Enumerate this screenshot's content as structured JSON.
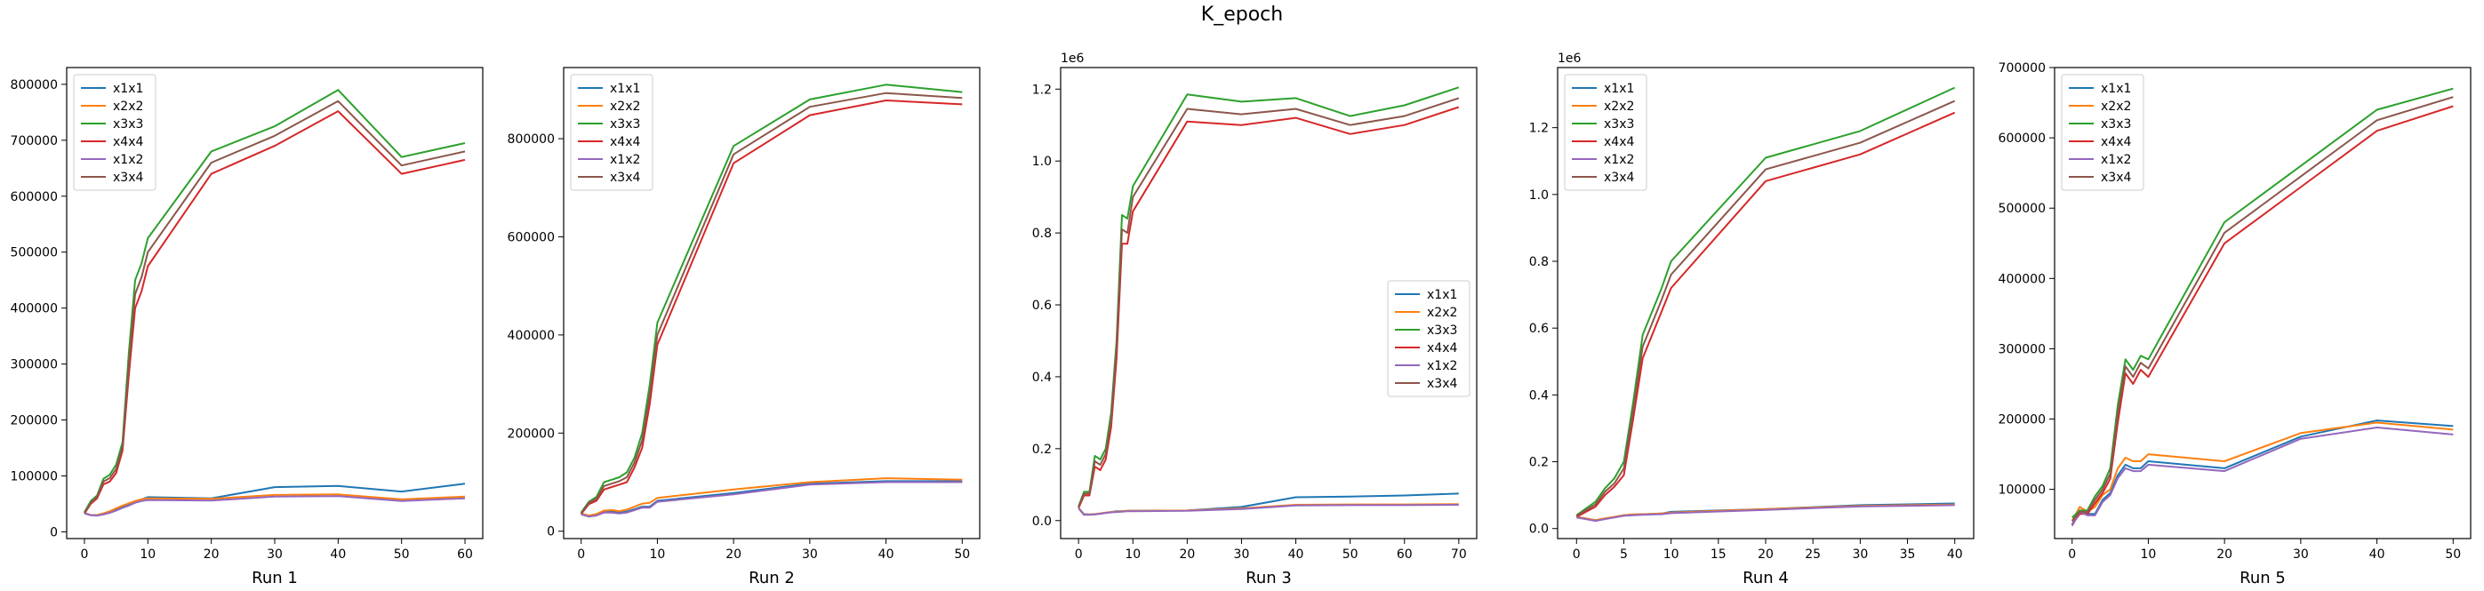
{
  "figure": {
    "title": "K_epoch"
  },
  "colors": {
    "x1x1": "#1f77b4",
    "x2x2": "#ff7f0e",
    "x3x3": "#2ca02c",
    "x4x4": "#d62728",
    "x1x2": "#9467bd",
    "x3x4": "#8c564b"
  },
  "chart_data": [
    {
      "type": "line",
      "xlabel": "Run 1",
      "xlim": [
        -2.8,
        62.8
      ],
      "ylim": [
        -12000,
        830000
      ],
      "xticks": [
        0,
        10,
        20,
        30,
        40,
        50,
        60
      ],
      "yticks": [
        0,
        100000,
        200000,
        300000,
        400000,
        500000,
        600000,
        700000,
        800000
      ],
      "y_exponent": "",
      "legend": "upper left",
      "x": [
        0,
        1,
        2,
        3,
        4,
        5,
        6,
        7,
        8,
        9,
        10,
        20,
        30,
        40,
        50,
        60
      ],
      "series": [
        {
          "name": "x1x1",
          "values": [
            33000,
            30000,
            30000,
            33000,
            36000,
            40000,
            46000,
            50000,
            55000,
            58000,
            62000,
            60000,
            80000,
            82000,
            72000,
            86000
          ]
        },
        {
          "name": "x2x2",
          "values": [
            34000,
            30000,
            30000,
            33000,
            37000,
            42000,
            47000,
            51000,
            55000,
            58000,
            60000,
            59000,
            66000,
            67000,
            58000,
            63000
          ]
        },
        {
          "name": "x3x3",
          "values": [
            35000,
            55000,
            65000,
            95000,
            102000,
            120000,
            160000,
            320000,
            450000,
            480000,
            525000,
            680000,
            725000,
            790000,
            670000,
            695000
          ]
        },
        {
          "name": "x4x4",
          "values": [
            33000,
            50000,
            60000,
            85000,
            90000,
            105000,
            145000,
            280000,
            400000,
            430000,
            475000,
            640000,
            690000,
            752000,
            640000,
            665000
          ]
        },
        {
          "name": "x1x2",
          "values": [
            33000,
            30000,
            29000,
            31000,
            34000,
            38000,
            43000,
            47000,
            52000,
            55000,
            57000,
            56000,
            63000,
            64000,
            55000,
            60000
          ]
        },
        {
          "name": "x3x4",
          "values": [
            34000,
            52000,
            63000,
            90000,
            96000,
            112000,
            152000,
            300000,
            425000,
            455000,
            500000,
            660000,
            708000,
            770000,
            655000,
            680000
          ]
        }
      ]
    },
    {
      "type": "line",
      "xlabel": "Run 2",
      "xlim": [
        -2.3,
        52.3
      ],
      "ylim": [
        -15000,
        945000
      ],
      "xticks": [
        0,
        10,
        20,
        30,
        40,
        50
      ],
      "yticks": [
        0,
        200000,
        400000,
        600000,
        800000
      ],
      "y_exponent": "",
      "legend": "upper left",
      "x": [
        0,
        1,
        2,
        3,
        4,
        5,
        6,
        7,
        8,
        9,
        10,
        20,
        30,
        40,
        50
      ],
      "series": [
        {
          "name": "x1x1",
          "values": [
            35000,
            30000,
            33000,
            40000,
            40000,
            38000,
            40000,
            45000,
            50000,
            50000,
            62000,
            78000,
            97000,
            102000,
            102000
          ]
        },
        {
          "name": "x2x2",
          "values": [
            36000,
            32000,
            35000,
            42000,
            43000,
            41000,
            44000,
            50000,
            56000,
            58000,
            68000,
            85000,
            100000,
            108000,
            105000
          ]
        },
        {
          "name": "x3x3",
          "values": [
            38000,
            60000,
            70000,
            100000,
            105000,
            110000,
            120000,
            150000,
            200000,
            300000,
            425000,
            785000,
            880000,
            910000,
            895000
          ]
        },
        {
          "name": "x4x4",
          "values": [
            35000,
            55000,
            62000,
            85000,
            90000,
            95000,
            100000,
            130000,
            170000,
            260000,
            380000,
            750000,
            848000,
            878000,
            870000
          ]
        },
        {
          "name": "x1x2",
          "values": [
            34000,
            30000,
            32000,
            38000,
            38000,
            36000,
            38000,
            43000,
            48000,
            48000,
            60000,
            75000,
            95000,
            100000,
            100000
          ]
        },
        {
          "name": "x3x4",
          "values": [
            36000,
            58000,
            66000,
            92000,
            97000,
            102000,
            110000,
            140000,
            185000,
            280000,
            400000,
            768000,
            865000,
            893000,
            883000
          ]
        }
      ]
    },
    {
      "type": "line",
      "xlabel": "Run 3",
      "xlim": [
        -3.3,
        73.3
      ],
      "ylim": [
        -0.05,
        1.26
      ],
      "xticks": [
        0,
        10,
        20,
        30,
        40,
        50,
        60,
        70
      ],
      "yticks": [
        0.0,
        0.2,
        0.4,
        0.6,
        0.8,
        1.0,
        1.2
      ],
      "y_exponent": "1e6",
      "legend": "center right",
      "x": [
        0,
        1,
        2,
        3,
        4,
        5,
        6,
        7,
        8,
        9,
        10,
        20,
        30,
        40,
        50,
        60,
        70
      ],
      "series": [
        {
          "name": "x1x1",
          "values": [
            0.035,
            0.018,
            0.017,
            0.018,
            0.02,
            0.022,
            0.024,
            0.026,
            0.026,
            0.027,
            0.027,
            0.028,
            0.038,
            0.065,
            0.067,
            0.07,
            0.075
          ]
        },
        {
          "name": "x2x2",
          "values": [
            0.035,
            0.017,
            0.017,
            0.018,
            0.02,
            0.022,
            0.024,
            0.025,
            0.026,
            0.027,
            0.027,
            0.028,
            0.034,
            0.044,
            0.045,
            0.045,
            0.046
          ]
        },
        {
          "name": "x3x3",
          "values": [
            0.04,
            0.08,
            0.08,
            0.18,
            0.17,
            0.2,
            0.3,
            0.5,
            0.85,
            0.84,
            0.93,
            1.185,
            1.165,
            1.175,
            1.125,
            1.155,
            1.205
          ]
        },
        {
          "name": "x4x4",
          "values": [
            0.035,
            0.07,
            0.07,
            0.15,
            0.14,
            0.17,
            0.26,
            0.45,
            0.77,
            0.77,
            0.86,
            1.11,
            1.1,
            1.12,
            1.075,
            1.1,
            1.15
          ]
        },
        {
          "name": "x1x2",
          "values": [
            0.034,
            0.016,
            0.016,
            0.017,
            0.019,
            0.021,
            0.023,
            0.024,
            0.025,
            0.026,
            0.026,
            0.027,
            0.032,
            0.042,
            0.043,
            0.043,
            0.044
          ]
        },
        {
          "name": "x3x4",
          "values": [
            0.037,
            0.075,
            0.075,
            0.165,
            0.155,
            0.185,
            0.28,
            0.48,
            0.81,
            0.8,
            0.9,
            1.145,
            1.13,
            1.145,
            1.1,
            1.125,
            1.175
          ]
        }
      ]
    },
    {
      "type": "line",
      "xlabel": "Run 4",
      "xlim": [
        -2.0,
        42.0
      ],
      "ylim": [
        -0.03,
        1.38
      ],
      "xticks": [
        0,
        5,
        10,
        15,
        20,
        25,
        30,
        35,
        40
      ],
      "yticks": [
        0.0,
        0.2,
        0.4,
        0.6,
        0.8,
        1.0,
        1.2
      ],
      "y_exponent": "1e6",
      "legend": "upper left",
      "x": [
        0,
        1,
        2,
        3,
        4,
        5,
        6,
        7,
        8,
        9,
        10,
        20,
        30,
        40
      ],
      "series": [
        {
          "name": "x1x1",
          "values": [
            0.035,
            0.03,
            0.025,
            0.03,
            0.035,
            0.04,
            0.042,
            0.043,
            0.044,
            0.045,
            0.05,
            0.058,
            0.07,
            0.075
          ]
        },
        {
          "name": "x2x2",
          "values": [
            0.035,
            0.03,
            0.025,
            0.03,
            0.035,
            0.04,
            0.042,
            0.043,
            0.044,
            0.045,
            0.048,
            0.058,
            0.068,
            0.072
          ]
        },
        {
          "name": "x3x3",
          "values": [
            0.04,
            0.06,
            0.08,
            0.12,
            0.15,
            0.2,
            0.38,
            0.58,
            0.65,
            0.72,
            0.8,
            1.11,
            1.19,
            1.32
          ]
        },
        {
          "name": "x4x4",
          "values": [
            0.035,
            0.05,
            0.065,
            0.1,
            0.125,
            0.16,
            0.33,
            0.51,
            0.58,
            0.65,
            0.72,
            1.04,
            1.12,
            1.245
          ]
        },
        {
          "name": "x1x2",
          "values": [
            0.033,
            0.028,
            0.023,
            0.028,
            0.033,
            0.038,
            0.04,
            0.041,
            0.042,
            0.043,
            0.046,
            0.056,
            0.066,
            0.07
          ]
        },
        {
          "name": "x3x4",
          "values": [
            0.038,
            0.055,
            0.072,
            0.11,
            0.135,
            0.18,
            0.355,
            0.545,
            0.615,
            0.685,
            0.76,
            1.075,
            1.155,
            1.28
          ]
        }
      ]
    },
    {
      "type": "line",
      "xlabel": "Run 5",
      "xlim": [
        -2.3,
        52.3
      ],
      "ylim": [
        30000,
        700000
      ],
      "xticks": [
        0,
        10,
        20,
        30,
        40,
        50
      ],
      "yticks": [
        100000,
        200000,
        300000,
        400000,
        500000,
        600000,
        700000
      ],
      "y_exponent": "",
      "legend": "upper left",
      "x": [
        0,
        1,
        2,
        3,
        4,
        5,
        6,
        7,
        8,
        9,
        10,
        20,
        30,
        40,
        50
      ],
      "series": [
        {
          "name": "x1x1",
          "values": [
            50000,
            70000,
            65000,
            65000,
            85000,
            95000,
            120000,
            135000,
            130000,
            130000,
            140000,
            130000,
            175000,
            198000,
            190000
          ]
        },
        {
          "name": "x2x2",
          "values": [
            55000,
            75000,
            68000,
            75000,
            92000,
            100000,
            130000,
            145000,
            140000,
            140000,
            150000,
            140000,
            180000,
            195000,
            185000
          ]
        },
        {
          "name": "x3x3",
          "values": [
            60000,
            70000,
            70000,
            90000,
            105000,
            130000,
            220000,
            285000,
            270000,
            290000,
            285000,
            480000,
            560000,
            640000,
            670000
          ]
        },
        {
          "name": "x4x4",
          "values": [
            50000,
            65000,
            65000,
            80000,
            95000,
            115000,
            195000,
            265000,
            250000,
            270000,
            260000,
            450000,
            530000,
            610000,
            645000
          ]
        },
        {
          "name": "x1x2",
          "values": [
            48000,
            68000,
            63000,
            63000,
            82000,
            92000,
            116000,
            130000,
            126000,
            126000,
            135000,
            126000,
            172000,
            188000,
            178000
          ]
        },
        {
          "name": "x3x4",
          "values": [
            55000,
            68000,
            68000,
            85000,
            100000,
            122000,
            208000,
            275000,
            260000,
            280000,
            272000,
            465000,
            545000,
            625000,
            658000
          ]
        }
      ]
    }
  ]
}
